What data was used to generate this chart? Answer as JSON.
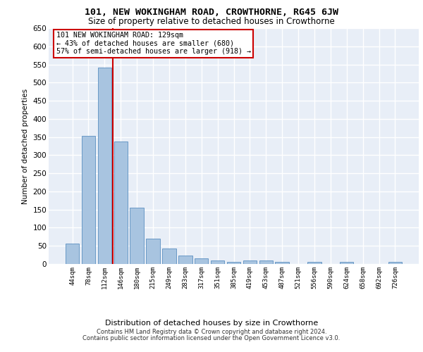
{
  "title": "101, NEW WOKINGHAM ROAD, CROWTHORNE, RG45 6JW",
  "subtitle": "Size of property relative to detached houses in Crowthorne",
  "xlabel": "Distribution of detached houses by size in Crowthorne",
  "ylabel": "Number of detached properties",
  "bar_color": "#a8c4e0",
  "bar_edge_color": "#5a8fc0",
  "background_color": "#e8eef7",
  "grid_color": "#ffffff",
  "categories": [
    "44sqm",
    "78sqm",
    "112sqm",
    "146sqm",
    "180sqm",
    "215sqm",
    "249sqm",
    "283sqm",
    "317sqm",
    "351sqm",
    "385sqm",
    "419sqm",
    "453sqm",
    "487sqm",
    "521sqm",
    "556sqm",
    "590sqm",
    "624sqm",
    "658sqm",
    "692sqm",
    "726sqm"
  ],
  "values": [
    57,
    354,
    541,
    338,
    155,
    70,
    42,
    24,
    16,
    10,
    5,
    9,
    9,
    5,
    0,
    5,
    0,
    5,
    0,
    0,
    5
  ],
  "annotation_text": "101 NEW WOKINGHAM ROAD: 129sqm\n← 43% of detached houses are smaller (680)\n57% of semi-detached houses are larger (918) →",
  "annotation_box_color": "#ffffff",
  "annotation_border_color": "#cc0000",
  "ylim": [
    0,
    650
  ],
  "yticks": [
    0,
    50,
    100,
    150,
    200,
    250,
    300,
    350,
    400,
    450,
    500,
    550,
    600,
    650
  ],
  "footer_line1": "Contains HM Land Registry data © Crown copyright and database right 2024.",
  "footer_line2": "Contains public sector information licensed under the Open Government Licence v3.0.",
  "red_line_color": "#cc0000",
  "red_line_x": 2.5
}
